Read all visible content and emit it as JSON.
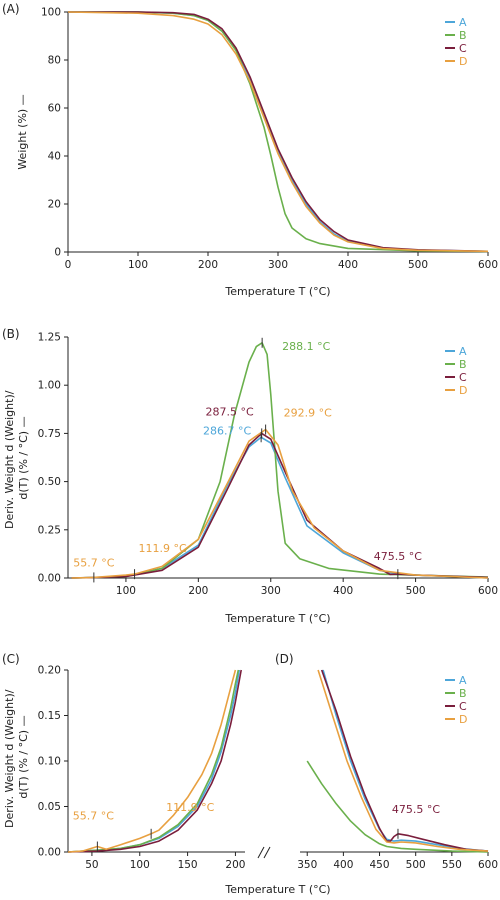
{
  "chart_data": [
    {
      "panel": "(A)",
      "type": "line",
      "xlabel": "Temperature T (°C)",
      "ylabel": "Weight (%) —",
      "xlim": [
        0,
        600
      ],
      "ylim": [
        0,
        100
      ],
      "xticks": [
        0,
        100,
        200,
        300,
        400,
        500,
        600
      ],
      "yticks": [
        0,
        20,
        40,
        60,
        80,
        100
      ],
      "legend": "top-right",
      "series": [
        {
          "name": "A",
          "color": "#4da6d9",
          "x": [
            0,
            100,
            150,
            180,
            200,
            220,
            240,
            260,
            280,
            300,
            320,
            340,
            360,
            380,
            400,
            450,
            500,
            600
          ],
          "y": [
            100,
            100,
            99.5,
            98.5,
            96.5,
            92,
            84,
            72,
            57,
            42,
            30,
            20,
            12.5,
            7.5,
            4.5,
            1.5,
            0.8,
            0.3
          ]
        },
        {
          "name": "B",
          "color": "#6ab04c",
          "x": [
            0,
            100,
            150,
            180,
            200,
            220,
            240,
            260,
            280,
            290,
            300,
            310,
            320,
            340,
            360,
            400,
            500,
            600
          ],
          "y": [
            100,
            100,
            99.5,
            98.5,
            96.5,
            92,
            84,
            70,
            52,
            40,
            27,
            16,
            10,
            5.5,
            3.5,
            1.5,
            0.5,
            0.2
          ]
        },
        {
          "name": "C",
          "color": "#7a1e3c",
          "x": [
            0,
            100,
            150,
            180,
            200,
            220,
            240,
            260,
            280,
            300,
            320,
            340,
            360,
            380,
            400,
            450,
            500,
            600
          ],
          "y": [
            100,
            100,
            99.7,
            99,
            97,
            93,
            85,
            73,
            58,
            43,
            31,
            21,
            13.5,
            8.5,
            5,
            1.8,
            0.9,
            0.3
          ]
        },
        {
          "name": "D",
          "color": "#e8a040",
          "x": [
            0,
            100,
            150,
            180,
            200,
            220,
            240,
            260,
            280,
            300,
            320,
            340,
            360,
            380,
            400,
            450,
            500,
            600
          ],
          "y": [
            100,
            99.5,
            98.5,
            97,
            95,
            90.5,
            82.5,
            71,
            56,
            41,
            29,
            19,
            12,
            7,
            4.2,
            1.4,
            0.7,
            0.3
          ]
        }
      ]
    },
    {
      "panel": "(B)",
      "type": "line",
      "xlabel": "Temperature T (°C)",
      "ylabel": "Deriv. Weight d (Weight)/ d(T) (% / °C) —",
      "xlim": [
        20,
        600
      ],
      "ylim": [
        0,
        1.25
      ],
      "xticks": [
        100,
        200,
        300,
        400,
        500,
        600
      ],
      "yticks": [
        0,
        0.25,
        0.5,
        0.75,
        1.0,
        1.25
      ],
      "legend": "top-right",
      "series": [
        {
          "name": "A",
          "color": "#4da6d9",
          "x": [
            25,
            55.7,
            100,
            150,
            200,
            240,
            270,
            286.7,
            300,
            320,
            350,
            400,
            450,
            475.5,
            500,
            600
          ],
          "y": [
            0,
            0.003,
            0.01,
            0.05,
            0.17,
            0.48,
            0.68,
            0.73,
            0.7,
            0.52,
            0.27,
            0.13,
            0.04,
            0.02,
            0.015,
            0
          ]
        },
        {
          "name": "B",
          "color": "#6ab04c",
          "x": [
            25,
            55.7,
            100,
            150,
            200,
            230,
            250,
            270,
            280,
            288.1,
            295,
            300,
            310,
            320,
            340,
            380,
            450,
            600
          ],
          "y": [
            0,
            0.002,
            0.008,
            0.05,
            0.2,
            0.5,
            0.85,
            1.12,
            1.2,
            1.22,
            1.16,
            0.95,
            0.45,
            0.18,
            0.1,
            0.05,
            0.02,
            0.005
          ]
        },
        {
          "name": "C",
          "color": "#7a1e3c",
          "x": [
            25,
            55.7,
            100,
            150,
            200,
            240,
            270,
            287.5,
            300,
            320,
            350,
            400,
            450,
            465,
            475.5,
            500,
            600
          ],
          "y": [
            0,
            0.002,
            0.008,
            0.04,
            0.16,
            0.46,
            0.69,
            0.75,
            0.72,
            0.55,
            0.3,
            0.14,
            0.05,
            0.018,
            0.02,
            0.015,
            0.003
          ]
        },
        {
          "name": "D",
          "color": "#e8a040",
          "x": [
            25,
            55.7,
            100,
            111.9,
            150,
            200,
            240,
            270,
            292.9,
            310,
            330,
            360,
            400,
            450,
            500,
            600
          ],
          "y": [
            0,
            0.003,
            0.015,
            0.02,
            0.06,
            0.2,
            0.49,
            0.71,
            0.77,
            0.69,
            0.45,
            0.26,
            0.14,
            0.04,
            0.015,
            0
          ]
        }
      ],
      "annotations": [
        {
          "text": "288.1 °C",
          "series": "B",
          "x": 288.1,
          "y": 1.22
        },
        {
          "text": "292.9 °C",
          "series": "D",
          "x": 292.9,
          "y": 0.77
        },
        {
          "text": "287.5 °C",
          "series": "C",
          "x": 287.5,
          "y": 0.75
        },
        {
          "text": "286.7 °C",
          "series": "A",
          "x": 286.7,
          "y": 0.73
        },
        {
          "text": "111.9 °C",
          "series": "D",
          "x": 111.9,
          "y": 0.02
        },
        {
          "text": "55.7 °C",
          "series": "D",
          "x": 55.7,
          "y": 0.003
        },
        {
          "text": "475.5 °C",
          "series": "C",
          "x": 475.5,
          "y": 0.02
        }
      ]
    },
    {
      "panel": "(C)",
      "type": "line",
      "xlabel": "Temperature T (°C)",
      "ylabel": "Deriv. Weight d (Weight)/ d(T) (% / °C) —",
      "xlim": [
        25,
        210
      ],
      "ylim": [
        0,
        0.2
      ],
      "xticks": [
        50,
        100,
        150,
        200
      ],
      "yticks": [
        0,
        0.05,
        0.1,
        0.15,
        0.2
      ],
      "series": [
        {
          "name": "A",
          "color": "#4da6d9",
          "x": [
            25,
            55.7,
            80,
            100,
            120,
            140,
            160,
            175,
            185,
            195,
            200,
            204
          ],
          "y": [
            0,
            0.002,
            0.004,
            0.008,
            0.015,
            0.028,
            0.05,
            0.08,
            0.11,
            0.15,
            0.175,
            0.2
          ]
        },
        {
          "name": "B",
          "color": "#6ab04c",
          "x": [
            25,
            55.7,
            80,
            100,
            120,
            140,
            160,
            175,
            185,
            195,
            200,
            203
          ],
          "y": [
            0,
            0.002,
            0.004,
            0.008,
            0.016,
            0.03,
            0.053,
            0.085,
            0.115,
            0.158,
            0.185,
            0.2
          ]
        },
        {
          "name": "C",
          "color": "#7a1e3c",
          "x": [
            25,
            55.7,
            80,
            100,
            120,
            140,
            160,
            175,
            185,
            195,
            200,
            206
          ],
          "y": [
            0,
            0.001,
            0.003,
            0.006,
            0.012,
            0.024,
            0.046,
            0.075,
            0.1,
            0.14,
            0.165,
            0.2
          ]
        },
        {
          "name": "D",
          "color": "#e8a040",
          "x": [
            25,
            40,
            55.7,
            65,
            80,
            100,
            111.9,
            120,
            135,
            150,
            165,
            175,
            185,
            195,
            200
          ],
          "y": [
            0,
            0.001,
            0.006,
            0.003,
            0.008,
            0.015,
            0.02,
            0.024,
            0.04,
            0.06,
            0.085,
            0.108,
            0.14,
            0.18,
            0.2
          ]
        }
      ],
      "annotations": [
        {
          "text": "111.9 °C",
          "series": "D",
          "x": 111.9,
          "y": 0.02
        },
        {
          "text": "55.7 °C",
          "series": "D",
          "x": 55.7,
          "y": 0.006
        }
      ]
    },
    {
      "panel": "(D)",
      "type": "line",
      "xlabel": "Temperature T (°C)",
      "ylabel": "",
      "xlim": [
        340,
        600
      ],
      "ylim": [
        0,
        0.2
      ],
      "xticks": [
        350,
        400,
        450,
        500,
        550,
        600
      ],
      "legend": "top-right",
      "series": [
        {
          "name": "A",
          "color": "#4da6d9",
          "x": [
            372,
            390,
            410,
            430,
            450,
            460,
            470,
            480,
            500,
            530,
            560,
            600
          ],
          "y": [
            0.2,
            0.15,
            0.1,
            0.058,
            0.025,
            0.014,
            0.012,
            0.013,
            0.012,
            0.008,
            0.004,
            0.001
          ]
        },
        {
          "name": "B",
          "color": "#6ab04c",
          "x": [
            350,
            370,
            390,
            410,
            430,
            450,
            460,
            480,
            500,
            550,
            600
          ],
          "y": [
            0.1,
            0.075,
            0.053,
            0.034,
            0.019,
            0.009,
            0.006,
            0.004,
            0.003,
            0.001,
            0
          ]
        },
        {
          "name": "C",
          "color": "#7a1e3c",
          "x": [
            370,
            390,
            410,
            430,
            450,
            460,
            465,
            470,
            475.5,
            490,
            510,
            540,
            570,
            600
          ],
          "y": [
            0.2,
            0.155,
            0.105,
            0.062,
            0.026,
            0.012,
            0.012,
            0.017,
            0.02,
            0.018,
            0.014,
            0.008,
            0.003,
            0.001
          ]
        },
        {
          "name": "D",
          "color": "#e8a040",
          "x": [
            365,
            385,
            405,
            425,
            445,
            460,
            470,
            480,
            500,
            530,
            560,
            600
          ],
          "y": [
            0.2,
            0.15,
            0.1,
            0.06,
            0.025,
            0.011,
            0.01,
            0.011,
            0.01,
            0.006,
            0.003,
            0.001
          ]
        }
      ],
      "annotations": [
        {
          "text": "475.5 °C",
          "series": "C",
          "x": 475.5,
          "y": 0.02
        }
      ]
    }
  ]
}
